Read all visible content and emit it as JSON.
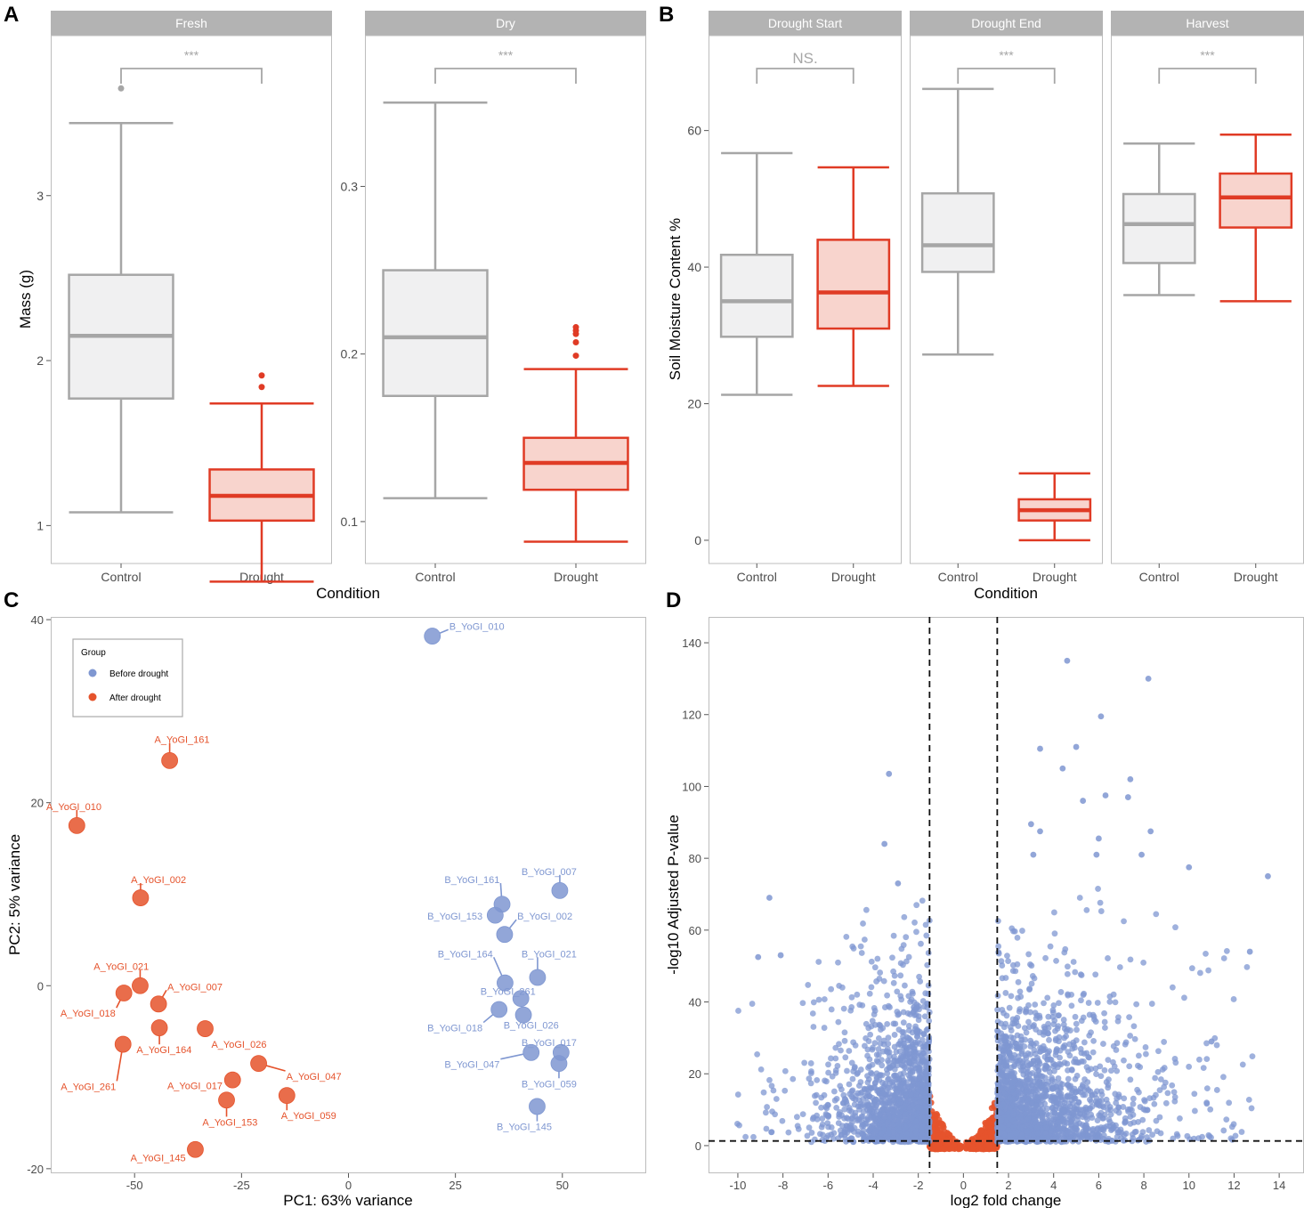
{
  "colors": {
    "control": "#a6a6a6",
    "control_fill": "#f0f0f1",
    "drought": "#e03b25",
    "drought_fill": "#f8d4cd",
    "strip": "#b3b3b3",
    "before": "#7f97d1",
    "after": "#e5532c",
    "sig_text": "#a6a6a6"
  },
  "chart_data": [
    {
      "panel": "A",
      "type": "box",
      "ylabel": "Mass (g)",
      "xlabel": "Condition",
      "facets": [
        {
          "strip": "Fresh",
          "ylim": [
            0.77,
            3.97
          ],
          "yticks": [
            1,
            2,
            3
          ],
          "categories": [
            "Control",
            "Drought"
          ],
          "boxes": [
            {
              "group": "Control",
              "whisker_low": 1.08,
              "q1": 1.77,
              "median": 2.15,
              "q3": 2.52,
              "whisker_high": 3.44,
              "outliers": [
                3.65
              ]
            },
            {
              "group": "Drought",
              "whisker_low": 0.66,
              "q1": 1.03,
              "median": 1.18,
              "q3": 1.34,
              "whisker_high": 1.74,
              "outliers": [
                1.84,
                1.91
              ]
            }
          ],
          "significance": "***"
        },
        {
          "strip": "Dry",
          "ylim": [
            0.075,
            0.39
          ],
          "yticks": [
            0.1,
            0.2,
            0.3
          ],
          "categories": [
            "Control",
            "Drought"
          ],
          "boxes": [
            {
              "group": "Control",
              "whisker_low": 0.114,
              "q1": 0.175,
              "median": 0.21,
              "q3": 0.25,
              "whisker_high": 0.35,
              "outliers": []
            },
            {
              "group": "Drought",
              "whisker_low": 0.088,
              "q1": 0.119,
              "median": 0.135,
              "q3": 0.15,
              "whisker_high": 0.191,
              "outliers": [
                0.199,
                0.207,
                0.212,
                0.214,
                0.216
              ]
            }
          ],
          "significance": "***"
        }
      ]
    },
    {
      "panel": "B",
      "type": "box",
      "ylabel": "Soil Moisture Content %",
      "xlabel": "Condition",
      "ylim": [
        -3.4,
        73.9
      ],
      "yticks": [
        0,
        20,
        40,
        60
      ],
      "facets": [
        {
          "strip": "Drought Start",
          "categories": [
            "Control",
            "Drought"
          ],
          "boxes": [
            {
              "group": "Control",
              "whisker_low": 21.3,
              "q1": 29.8,
              "median": 35.0,
              "q3": 41.8,
              "whisker_high": 56.7,
              "outliers": []
            },
            {
              "group": "Drought",
              "whisker_low": 22.6,
              "q1": 31.0,
              "median": 36.3,
              "q3": 44.0,
              "whisker_high": 54.6,
              "outliers": []
            }
          ],
          "significance": "NS."
        },
        {
          "strip": "Drought End",
          "categories": [
            "Control",
            "Drought"
          ],
          "boxes": [
            {
              "group": "Control",
              "whisker_low": 27.2,
              "q1": 39.3,
              "median": 43.2,
              "q3": 50.8,
              "whisker_high": 66.1,
              "outliers": []
            },
            {
              "group": "Drought",
              "whisker_low": 0.0,
              "q1": 2.9,
              "median": 4.4,
              "q3": 6.0,
              "whisker_high": 9.8,
              "outliers": []
            }
          ],
          "significance": "***"
        },
        {
          "strip": "Harvest",
          "categories": [
            "Control",
            "Drought"
          ],
          "boxes": [
            {
              "group": "Control",
              "whisker_low": 35.9,
              "q1": 40.6,
              "median": 46.3,
              "q3": 50.7,
              "whisker_high": 58.1,
              "outliers": []
            },
            {
              "group": "Drought",
              "whisker_low": 35.0,
              "q1": 45.8,
              "median": 50.2,
              "q3": 53.7,
              "whisker_high": 59.4,
              "outliers": []
            }
          ],
          "significance": "***"
        }
      ]
    },
    {
      "panel": "C",
      "type": "scatter",
      "xlabel": "PC1: 63% variance",
      "ylabel": "PC2: 5% variance",
      "xlim": [
        -69.6,
        69.6
      ],
      "ylim": [
        -20.5,
        40.3
      ],
      "xticks": [
        -50,
        -25,
        0,
        25,
        50
      ],
      "yticks": [
        -20,
        0,
        20,
        40
      ],
      "legend": {
        "title": "Group",
        "position": "top-left",
        "entries": [
          "Before drought",
          "After drought"
        ]
      },
      "points": [
        {
          "label": "B_YoGI_010",
          "group": "Before drought",
          "x": 19.6,
          "y": 38.2,
          "lx": 30,
          "ly": 39.3
        },
        {
          "label": "B_YoGI_007",
          "group": "Before drought",
          "x": 49.4,
          "y": 10.4,
          "lx": 46.9,
          "ly": 12.5
        },
        {
          "label": "B_YoGI_161",
          "group": "Before drought",
          "x": 35.9,
          "y": 8.9,
          "lx": 28.9,
          "ly": 11.6
        },
        {
          "label": "B_YoGI_153",
          "group": "Before drought",
          "x": 34.3,
          "y": 7.7,
          "lx": 24.9,
          "ly": 7.6
        },
        {
          "label": "B_YoGI_002",
          "group": "Before drought",
          "x": 36.5,
          "y": 5.6,
          "lx": 45.9,
          "ly": 7.6
        },
        {
          "label": "B_YoGI_164",
          "group": "Before drought",
          "x": 36.6,
          "y": 0.3,
          "lx": 27.3,
          "ly": 3.5
        },
        {
          "label": "B_YoGI_021",
          "group": "Before drought",
          "x": 44.2,
          "y": 0.9,
          "lx": 46.9,
          "ly": 3.5
        },
        {
          "label": "B_YoGI_261",
          "group": "Before drought",
          "x": 40.3,
          "y": -1.4,
          "lx": 37.3,
          "ly": -0.6
        },
        {
          "label": "B_YoGI_018",
          "group": "Before drought",
          "x": 35.2,
          "y": -2.6,
          "lx": 24.9,
          "ly": -4.6
        },
        {
          "label": "B_YoGI_026",
          "group": "Before drought",
          "x": 40.9,
          "y": -3.2,
          "lx": 42.7,
          "ly": -4.3
        },
        {
          "label": "B_YoGI_017",
          "group": "Before drought",
          "x": 49.7,
          "y": -7.3,
          "lx": 46.9,
          "ly": -6.2
        },
        {
          "label": "B_YoGI_047",
          "group": "Before drought",
          "x": 42.7,
          "y": -7.3,
          "lx": 28.9,
          "ly": -8.6
        },
        {
          "label": "B_YoGI_059",
          "group": "Before drought",
          "x": 49.2,
          "y": -8.5,
          "lx": 46.9,
          "ly": -10.7
        },
        {
          "label": "B_YoGI_145",
          "group": "Before drought",
          "x": 44.1,
          "y": -13.2,
          "lx": 41.1,
          "ly": -15.4
        },
        {
          "label": "A_YoGI_161",
          "group": "After drought",
          "x": -41.8,
          "y": 24.6,
          "lx": -38.9,
          "ly": 26.9
        },
        {
          "label": "A_YoGI_010",
          "group": "After drought",
          "x": -63.5,
          "y": 17.5,
          "lx": -64.2,
          "ly": 19.6
        },
        {
          "label": "A_YoGI_002",
          "group": "After drought",
          "x": -48.6,
          "y": 9.6,
          "lx": -44.4,
          "ly": 11.6
        },
        {
          "label": "A_YoGI_021",
          "group": "After drought",
          "x": -48.7,
          "y": 0.0,
          "lx": -53.1,
          "ly": 2.1
        },
        {
          "label": "A_YoGI_007",
          "group": "After drought",
          "x": -44.4,
          "y": -2.0,
          "lx": -35.9,
          "ly": -0.1
        },
        {
          "label": "A_YoGI_018",
          "group": "After drought",
          "x": -52.5,
          "y": -0.8,
          "lx": -60.9,
          "ly": -3.0
        },
        {
          "label": "A_YoGI_164",
          "group": "After drought",
          "x": -44.2,
          "y": -4.6,
          "lx": -43.1,
          "ly": -7.0
        },
        {
          "label": "A_YoGI_026",
          "group": "After drought",
          "x": -33.5,
          "y": -4.7,
          "lx": -25.6,
          "ly": -6.4
        },
        {
          "label": "A_YoGI_261",
          "group": "After drought",
          "x": -52.7,
          "y": -6.4,
          "lx": -60.8,
          "ly": -11.0
        },
        {
          "label": "A_YoGI_047",
          "group": "After drought",
          "x": -21.0,
          "y": -8.5,
          "lx": -8.1,
          "ly": -9.9
        },
        {
          "label": "A_YoGI_017",
          "group": "After drought",
          "x": -27.1,
          "y": -10.3,
          "lx": -35.9,
          "ly": -10.9
        },
        {
          "label": "A_YoGI_153",
          "group": "After drought",
          "x": -28.5,
          "y": -12.5,
          "lx": -27.7,
          "ly": -14.9
        },
        {
          "label": "A_YoGI_059",
          "group": "After drought",
          "x": -14.4,
          "y": -12.0,
          "lx": -9.3,
          "ly": -14.2
        },
        {
          "label": "A_YoGI_145",
          "group": "After drought",
          "x": -35.8,
          "y": -17.9,
          "lx": -44.5,
          "ly": -18.8
        }
      ]
    },
    {
      "panel": "D",
      "type": "scatter",
      "xlabel": "log2 fold change",
      "ylabel": "-log10 Adjusted P-value",
      "xlim": [
        -11.3,
        15.1
      ],
      "ylim": [
        -7.7,
        147.2
      ],
      "xticks": [
        -10,
        -8,
        -6,
        -4,
        -2,
        0,
        2,
        4,
        6,
        8,
        10,
        12,
        14
      ],
      "yticks": [
        0,
        20,
        40,
        60,
        80,
        100,
        120,
        140
      ],
      "thresholds": {
        "log2fc": [
          -1.5,
          1.5
        ],
        "neglog10p": 1.3
      },
      "highlight_points": [
        [
          4.6,
          135.0
        ],
        [
          8.2,
          130.0
        ],
        [
          6.1,
          119.5
        ],
        [
          5.0,
          111.0
        ],
        [
          3.4,
          110.5
        ],
        [
          4.4,
          105.0
        ],
        [
          -3.3,
          103.5
        ],
        [
          6.3,
          97.5
        ],
        [
          7.4,
          102.0
        ],
        [
          5.3,
          96.0
        ],
        [
          7.3,
          97.0
        ],
        [
          -3.5,
          84.0
        ],
        [
          3.0,
          89.5
        ],
        [
          3.4,
          87.5
        ],
        [
          8.3,
          87.5
        ],
        [
          6.0,
          85.5
        ],
        [
          7.9,
          81.0
        ],
        [
          5.9,
          81.0
        ],
        [
          3.1,
          81.0
        ],
        [
          10.0,
          77.5
        ],
        [
          13.5,
          75.0
        ],
        [
          -2.9,
          73.0
        ],
        [
          -8.6,
          69.0
        ],
        [
          -9.1,
          52.5
        ],
        [
          -8.1,
          53.0
        ],
        [
          12.7,
          54.0
        ],
        [
          11.0,
          29.0
        ],
        [
          -2.2,
          38.5
        ]
      ],
      "density_description_points": {
        "n_upregulated_sig": 1800,
        "n_downregulated_sig": 1600,
        "n_nonsig_left": 500,
        "n_nonsig_right": 500
      }
    }
  ],
  "panel_labels": [
    "A",
    "B",
    "C",
    "D"
  ]
}
